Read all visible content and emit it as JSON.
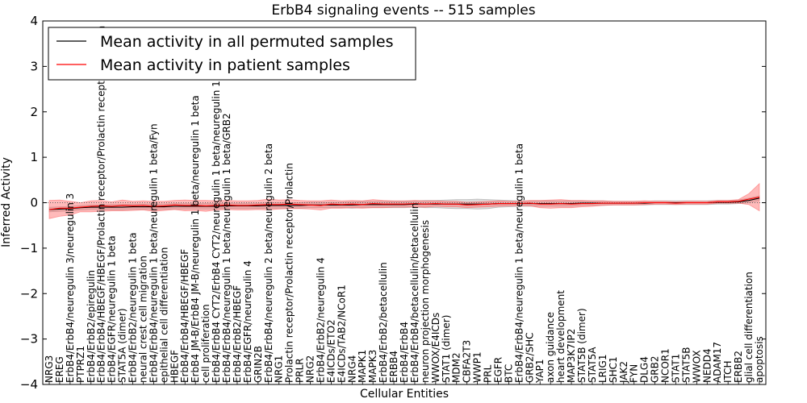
{
  "chart_data": {
    "type": "line",
    "title": "ErbB4 signaling events -- 515 samples",
    "xlabel": "Cellular Entities",
    "ylabel": "Inferred Activity",
    "ylim": [
      -4,
      4
    ],
    "yticks": [
      "4",
      "3",
      "2",
      "1",
      "0",
      "−1",
      "−2",
      "−3",
      "−4"
    ],
    "ytick_values": [
      4,
      3,
      2,
      1,
      0,
      -1,
      -2,
      -3,
      -4
    ],
    "legend_position": "top-left",
    "categories": [
      "NRG3",
      "EREG",
      "ErbB4/ErbB4/neuregulin 3/neuregulin 3",
      "PTPRZ1",
      "ErbB4/ErbB2/epiregulin",
      "ErbB4/ErbB4/HBEGF/HBEGF/Prolactin receptor/Prolactin receptor/Prolactin",
      "ErbB4/EGFR/neuregulin 1 beta",
      "STAT5A (dimer)",
      "ErbB4/ErbB2/neuregulin 1 beta",
      "neural crest cell migration",
      "ErbB4/ErbB4/neuregulin 1 beta/neuregulin 1 beta/Fyn",
      "epithelial cell differentiation",
      "HBEGF",
      "ErbB4/ErbB4/HBEGF/HBEGF",
      "ErbB4 JM-B/ErbB4 JM-B/neuregulin 1 beta/neuregulin 1 beta",
      "cell proliferation",
      "ErbB4/ErbB4 CYT2/ErbB4 CYT2/neuregulin 1 beta/neuregulin 1 beta",
      "ErbB4/ErbB4/neuregulin 1 beta/neuregulin 1 beta/GRB2",
      "ErbB4/ErbB2/HBEGF",
      "ErbB4/EGFR/neuregulin 4",
      "GRIN2B",
      "ErbB4/ErbB4/neuregulin 2 beta/neuregulin 2 beta",
      "NRG1",
      "Prolactin receptor/Prolactin receptor/Prolactin",
      "PRLR",
      "NRG2",
      "ErbB4/ErbB2/neuregulin 4",
      "E4ICDs/ETO2",
      "E4ICDs/TAB2/NCoR1",
      "NRG4",
      "MAPK1",
      "MAPK3",
      "ErbB4/ErbB2/betacellulin",
      "ERBB4",
      "ErbB4/ErbB4",
      "ErbB4/ErbB4/betacellulin/betacellulin",
      "neuron projection morphogenesis",
      "WWOX/E4ICDs",
      "STAT1 (dimer)",
      "MDM2",
      "CBFA2T3",
      "WWP1",
      "PRL",
      "EGFR",
      "BTC",
      "ErbB4/ErbB4/neuregulin 1 beta/neuregulin 1 beta",
      "GRB2/SHC",
      "YAP1",
      "axon guidance",
      "heart development",
      "MAP3K7IP2",
      "STAT5B (dimer)",
      "STAT5A",
      "LRIG1",
      "SHC1",
      "JAK2",
      "FYN",
      "DLG4",
      "GRB2",
      "NCOR1",
      "STAT1",
      "STAT5B",
      "WWOX",
      "NEDD4",
      "ADAM17",
      "ITCH",
      "ERBB2",
      "glial cell differentiation",
      "apoptosis"
    ],
    "series": [
      {
        "name": "Mean activity in all permuted samples",
        "color": "#000000",
        "values": [
          -0.15,
          -0.14,
          -0.13,
          -0.11,
          -0.1,
          -0.1,
          -0.1,
          -0.1,
          -0.09,
          -0.09,
          -0.09,
          -0.09,
          -0.08,
          -0.08,
          -0.08,
          -0.08,
          -0.08,
          -0.07,
          -0.07,
          -0.07,
          -0.07,
          -0.06,
          -0.06,
          -0.06,
          -0.06,
          -0.05,
          -0.05,
          -0.05,
          -0.05,
          -0.05,
          -0.04,
          -0.04,
          -0.04,
          -0.04,
          -0.04,
          -0.03,
          -0.03,
          -0.03,
          -0.03,
          -0.03,
          -0.03,
          -0.03,
          -0.03,
          -0.02,
          -0.02,
          -0.02,
          -0.02,
          -0.02,
          -0.02,
          -0.02,
          -0.02,
          -0.01,
          -0.01,
          -0.01,
          -0.01,
          -0.01,
          -0.01,
          -0.01,
          0.0,
          0.0,
          0.0,
          0.0,
          0.0,
          0.0,
          0.01,
          0.01,
          0.02,
          0.05,
          0.1
        ],
        "band": [
          0.05,
          0.05,
          0.05,
          0.05,
          0.05,
          0.05,
          0.06,
          0.06,
          0.06,
          0.06,
          0.06,
          0.06,
          0.06,
          0.06,
          0.06,
          0.06,
          0.06,
          0.06,
          0.06,
          0.06,
          0.06,
          0.06,
          0.06,
          0.06,
          0.06,
          0.06,
          0.06,
          0.06,
          0.06,
          0.07,
          0.07,
          0.07,
          0.07,
          0.07,
          0.07,
          0.07,
          0.08,
          0.08,
          0.09,
          0.1,
          0.1,
          0.11,
          0.1,
          0.08,
          0.07,
          0.06,
          0.06,
          0.06,
          0.06,
          0.06,
          0.06,
          0.05,
          0.05,
          0.05,
          0.04,
          0.04,
          0.04,
          0.04,
          0.04,
          0.04,
          0.04,
          0.04,
          0.04,
          0.04,
          0.04,
          0.04,
          0.04,
          0.05,
          0.05
        ],
        "band_color": "#999999"
      },
      {
        "name": "Mean activity in patient samples",
        "color": "#ff0000",
        "values": [
          -0.15,
          -0.12,
          -0.12,
          -0.1,
          -0.08,
          -0.07,
          -0.08,
          -0.06,
          -0.07,
          -0.06,
          -0.08,
          -0.07,
          -0.05,
          -0.06,
          -0.06,
          -0.07,
          -0.06,
          -0.05,
          -0.06,
          -0.06,
          -0.05,
          -0.04,
          -0.04,
          -0.03,
          -0.04,
          -0.05,
          -0.06,
          -0.03,
          -0.04,
          -0.03,
          -0.04,
          -0.02,
          -0.03,
          -0.03,
          -0.03,
          -0.02,
          -0.03,
          -0.02,
          -0.03,
          -0.03,
          -0.05,
          -0.04,
          -0.03,
          -0.02,
          -0.02,
          -0.02,
          -0.01,
          -0.03,
          -0.03,
          -0.02,
          -0.03,
          -0.02,
          -0.02,
          -0.01,
          -0.01,
          -0.01,
          -0.01,
          0.0,
          0.0,
          0.0,
          -0.01,
          0.0,
          0.0,
          0.0,
          0.02,
          0.02,
          0.03,
          0.08,
          0.12
        ],
        "band": [
          0.2,
          0.18,
          0.15,
          0.1,
          0.12,
          0.12,
          0.1,
          0.12,
          0.1,
          0.1,
          0.11,
          0.1,
          0.1,
          0.12,
          0.11,
          0.12,
          0.1,
          0.1,
          0.1,
          0.1,
          0.1,
          0.12,
          0.1,
          0.1,
          0.09,
          0.09,
          0.1,
          0.09,
          0.08,
          0.08,
          0.08,
          0.09,
          0.08,
          0.07,
          0.07,
          0.07,
          0.07,
          0.06,
          0.06,
          0.06,
          0.06,
          0.06,
          0.06,
          0.06,
          0.05,
          0.05,
          0.06,
          0.08,
          0.09,
          0.09,
          0.08,
          0.07,
          0.06,
          0.05,
          0.04,
          0.04,
          0.04,
          0.04,
          0.03,
          0.03,
          0.03,
          0.03,
          0.03,
          0.03,
          0.03,
          0.03,
          0.04,
          0.12,
          0.3
        ],
        "band_color": "#ff6666"
      }
    ]
  },
  "colors": {
    "axes": "#000000",
    "zero_line": "#666666"
  }
}
